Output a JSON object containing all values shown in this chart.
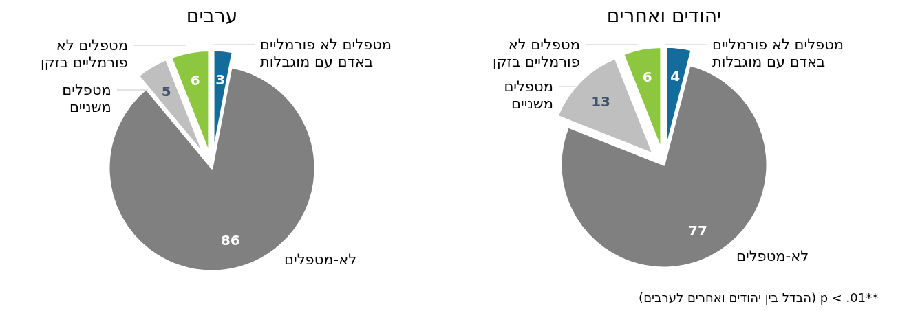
{
  "chart_data": [
    {
      "type": "pie",
      "title": "ערבים",
      "categories": [
        "מטפלים לא פורמליים באדם עם מוגבלות",
        "לא-מטפלים",
        "מטפלים משניים",
        "מטפלים לא פורמליים בזקן"
      ],
      "values": [
        3,
        86,
        5,
        6
      ],
      "colors": [
        "#146c9c",
        "#808080",
        "#bfbfbf",
        "#8dc63f"
      ],
      "data_labels": true
    },
    {
      "type": "pie",
      "title": "יהודים ואחרים",
      "categories": [
        "מטפלים לא פורמליים באדם עם מוגבלות",
        "לא-מטפלים",
        "מטפלים משניים",
        "מטפלים לא פורמליים בזקן"
      ],
      "values": [
        4,
        77,
        13,
        6
      ],
      "colors": [
        "#146c9c",
        "#808080",
        "#bfbfbf",
        "#8dc63f"
      ],
      "data_labels": true,
      "annotations": [
        "(הבדל בין יהודים ואחרים לערבים) p < .01**"
      ]
    }
  ]
}
